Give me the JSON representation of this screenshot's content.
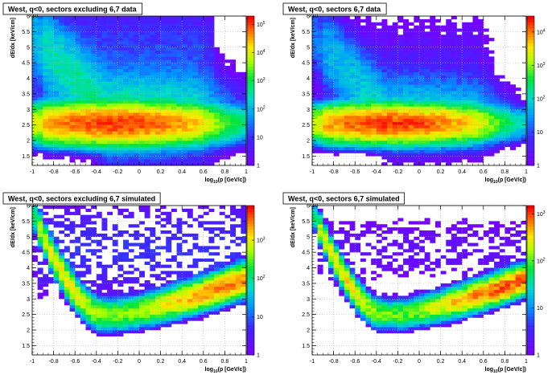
{
  "figure_background": "#ffffff",
  "chart_data": [
    {
      "type": "heatmap",
      "title": "West, q<0, sectors excluding 6,7 data",
      "xlabel": "log10(p [GeV/c])",
      "ylabel": "dE/dx [keV/cm]",
      "y_exponent_label": "×10",
      "xlim": [
        -1,
        1
      ],
      "ylim": [
        1.2,
        6.0
      ],
      "xticks": [
        "-1",
        "-0.8",
        "-0.6",
        "-0.4",
        "-0.2",
        "0",
        "0.2",
        "0.4",
        "0.6",
        "0.8",
        "1"
      ],
      "yticks": [
        "1.5",
        "2",
        "2.5",
        "3",
        "3.5",
        "4",
        "4.5",
        "5",
        "5.5",
        "6"
      ],
      "colorbar": {
        "scale": "log",
        "range": [
          1,
          200000
        ],
        "ticks": [
          "1",
          "10",
          "10^2",
          "10^3",
          "10^4",
          "10^5"
        ]
      },
      "band": {
        "kind": "data",
        "peak": 120000,
        "center_x": -0.2,
        "center_y": 2.55,
        "width_y": 0.32,
        "width_x": 0.5
      },
      "grid": true,
      "palette": "rainbow"
    },
    {
      "type": "heatmap",
      "title": "West, q<0, sectors 6,7 data",
      "xlabel": "log10(p [GeV/c])",
      "ylabel": "dE/dx [keV/cm]",
      "y_exponent_label": "×10",
      "xlim": [
        -1,
        1
      ],
      "ylim": [
        1.2,
        6.0
      ],
      "xticks": [
        "-1",
        "-0.8",
        "-0.6",
        "-0.4",
        "-0.2",
        "0",
        "0.2",
        "0.4",
        "0.6",
        "0.8",
        "1"
      ],
      "yticks": [
        "1.5",
        "2",
        "2.5",
        "3",
        "3.5",
        "4",
        "4.5",
        "5",
        "5.5",
        "6"
      ],
      "colorbar": {
        "scale": "log",
        "range": [
          1,
          30000
        ],
        "ticks": [
          "1",
          "10",
          "10^2",
          "10^3",
          "10^4"
        ]
      },
      "band": {
        "kind": "data",
        "peak": 20000,
        "center_x": -0.25,
        "center_y": 2.55,
        "width_y": 0.32,
        "width_x": 0.5
      },
      "grid": true,
      "palette": "rainbow"
    },
    {
      "type": "heatmap",
      "title": "West, q<0, sectors excluding 6,7 simulated",
      "xlabel": "log10(p [GeV/c])",
      "ylabel": "dE/dx [keV/cm]",
      "y_exponent_label": "×10",
      "xlim": [
        -1,
        1
      ],
      "ylim": [
        1.2,
        6.0
      ],
      "xticks": [
        "-1",
        "-0.8",
        "-0.6",
        "-0.4",
        "-0.2",
        "0",
        "0.2",
        "0.4",
        "0.6",
        "0.8",
        "1"
      ],
      "yticks": [
        "1.5",
        "2",
        "2.5",
        "3",
        "3.5",
        "4",
        "4.5",
        "5",
        "5.5",
        "6"
      ],
      "colorbar": {
        "scale": "log",
        "range": [
          1,
          8000
        ],
        "ticks": [
          "1",
          "10",
          "10^2",
          "10^3"
        ]
      },
      "band": {
        "kind": "sim",
        "peak": 3000,
        "min_y": 2.5,
        "min_x": -0.25,
        "width_y": 0.28
      },
      "grid": true,
      "palette": "rainbow"
    },
    {
      "type": "heatmap",
      "title": "West, q<0, sectors 6,7 simulated",
      "xlabel": "log10(p [GeV/c])",
      "ylabel": "dE/dx [keV/cm]",
      "y_exponent_label": "×10",
      "xlim": [
        -1,
        1
      ],
      "ylim": [
        1.2,
        6.0
      ],
      "xticks": [
        "-1",
        "-0.8",
        "-0.6",
        "-0.4",
        "-0.2",
        "0",
        "0.2",
        "0.4",
        "0.6",
        "0.8",
        "1"
      ],
      "yticks": [
        "1.5",
        "2",
        "2.5",
        "3",
        "3.5",
        "4",
        "4.5",
        "5",
        "5.5",
        "6"
      ],
      "colorbar": {
        "scale": "log",
        "range": [
          1,
          1500
        ],
        "ticks": [
          "1",
          "10",
          "10^2",
          "10^3"
        ]
      },
      "band": {
        "kind": "sim",
        "peak": 900,
        "min_y": 2.5,
        "min_x": -0.25,
        "width_y": 0.28
      },
      "grid": true,
      "palette": "rainbow"
    }
  ]
}
